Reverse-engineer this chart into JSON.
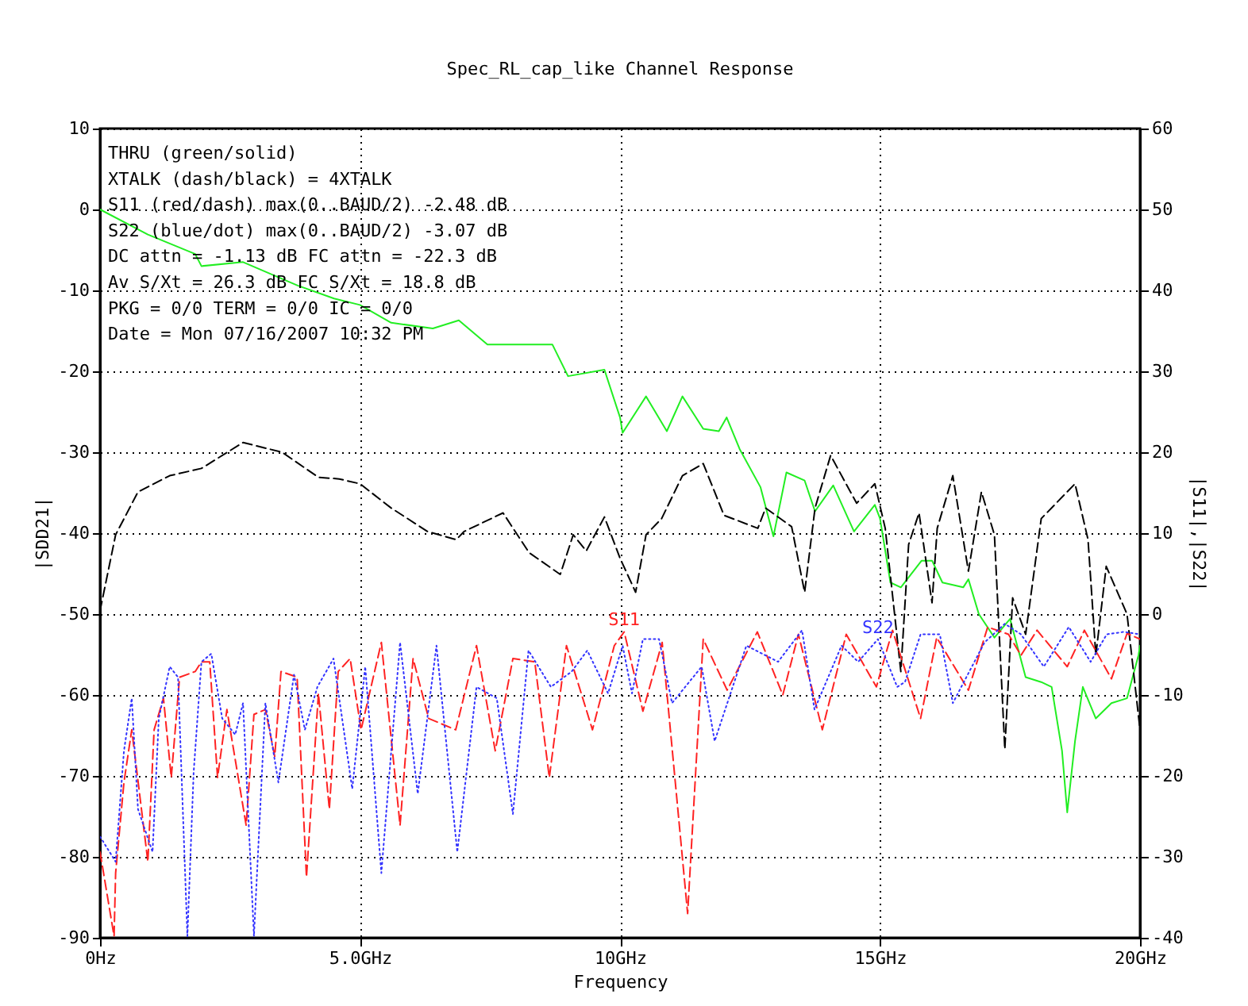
{
  "chart_data": {
    "type": "line",
    "title": "Spec_RL_cap_like Channel Response",
    "xlabel": "Frequency",
    "ylabel": "|SDD21|",
    "y2label": "|S11|,|S22|",
    "xlim": [
      0,
      20
    ],
    "xticks": [
      {
        "value": 0,
        "label": "0Hz"
      },
      {
        "value": 5,
        "label": "5.0GHz"
      },
      {
        "value": 10,
        "label": "10GHz"
      },
      {
        "value": 15,
        "label": "15GHz"
      },
      {
        "value": 20,
        "label": "20GHz"
      }
    ],
    "ylim": [
      -90,
      10
    ],
    "yticks": [
      -90,
      -80,
      -70,
      -60,
      -50,
      -40,
      -30,
      -20,
      -10,
      0,
      10
    ],
    "y2lim": [
      -40,
      60
    ],
    "y2ticks": [
      -40,
      -30,
      -20,
      -10,
      0,
      10,
      20,
      30,
      40,
      50,
      60
    ],
    "grid": true,
    "marker": "none",
    "annotations": [
      "THRU (green/solid)",
      "XTALK (dash/black) = 4XTALK",
      "S11 (red/dash) max(0..BAUD/2) -2.48 dB",
      "S22 (blue/dot) max(0..BAUD/2) -3.07 dB",
      "DC attn = -1.13 dB  FC attn = -22.3 dB",
      "Av S/Xt = 26.3 dB  FC S/Xt = 18.8 dB",
      "PKG = 0/0  TERM = 0/0  IC = 0/0",
      "Date = Mon 07/16/2007  10:32 PM"
    ],
    "series": [
      {
        "color": "#22ee22",
        "line_style": "solid",
        "x": [
          0,
          0.92,
          1.83,
          1.95,
          2.75,
          3.8,
          4.5,
          5,
          5.6,
          6.4,
          6.9,
          7.45,
          8.15,
          8.7,
          9.0,
          9.7,
          10.0,
          10.05,
          10.5,
          10.9,
          11.2,
          11.6,
          11.9,
          12.05,
          12.3,
          12.7,
          12.95,
          13.2,
          13.55,
          13.75,
          14.1,
          14.5,
          14.9,
          15.0,
          15.2,
          15.4,
          15.8,
          16.0,
          16.2,
          16.6,
          16.7,
          16.9,
          17.2,
          17.5,
          17.8,
          18.1,
          18.3,
          18.5,
          18.6,
          18.75,
          18.9,
          19.15,
          19.45,
          19.75,
          19.97,
          20
        ],
        "values": [
          0,
          -3.1,
          -5.5,
          -7,
          -6.5,
          -9.4,
          -11,
          -11.8,
          -14,
          -14.7,
          -13.7,
          -16.7,
          -16.7,
          -16.7,
          -20.6,
          -19.8,
          -25.7,
          -27.6,
          -23.1,
          -27.4,
          -23.1,
          -27.1,
          -27.4,
          -25.7,
          -29.6,
          -34.3,
          -40.4,
          -32.5,
          -33.5,
          -37.3,
          -34.1,
          -39.8,
          -36.5,
          -38.2,
          -46.1,
          -46.7,
          -43.4,
          -43.4,
          -46.1,
          -46.7,
          -45.7,
          -50,
          -52.9,
          -50.6,
          -57.8,
          -58.4,
          -59,
          -66.9,
          -74.5,
          -65.7,
          -59,
          -62.9,
          -61,
          -60.4,
          -55.1,
          -53.9
        ]
      },
      {
        "color": "#000000",
        "line_style": "dashed",
        "x": [
          0,
          0.3,
          0.73,
          1.34,
          1.95,
          2.75,
          3.5,
          4.2,
          4.6,
          5.0,
          5.6,
          6.3,
          6.85,
          7.0,
          7.75,
          8.25,
          8.85,
          9.1,
          9.35,
          9.7,
          10.0,
          10.3,
          10.5,
          10.8,
          11.2,
          11.6,
          12.0,
          12.65,
          12.8,
          13.3,
          13.55,
          13.75,
          14.05,
          14.55,
          14.9,
          15.1,
          15.4,
          15.55,
          15.75,
          16.0,
          16.1,
          16.4,
          16.7,
          16.95,
          17.2,
          17.4,
          17.55,
          17.8,
          18.1,
          18.75,
          19.0,
          19.15,
          19.35,
          19.75,
          20
        ],
        "values": [
          -49.6,
          -40.2,
          -34.9,
          -32.9,
          -32,
          -28.8,
          -30,
          -33.1,
          -33.3,
          -33.9,
          -36.9,
          -39.8,
          -40.8,
          -39.8,
          -37.5,
          -42.4,
          -45.1,
          -40.2,
          -42.2,
          -38,
          -43.1,
          -47.3,
          -40.2,
          -38.2,
          -32.9,
          -31.4,
          -37.8,
          -39.4,
          -36.9,
          -39.2,
          -47.3,
          -36.9,
          -30.4,
          -36.3,
          -33.9,
          -39.4,
          -57.1,
          -41.4,
          -37.5,
          -48.6,
          -39.4,
          -32.9,
          -44.7,
          -34.9,
          -40.2,
          -66.7,
          -48,
          -52.5,
          -38.2,
          -33.9,
          -40.8,
          -55.1,
          -44.1,
          -50,
          -64.3
        ]
      },
      {
        "name": "S11",
        "color": "#ff2222",
        "line_style": "dashed",
        "axis": "y2",
        "x": [
          0,
          0.27,
          0.3,
          0.46,
          0.61,
          0.92,
          1.04,
          1.22,
          1.37,
          1.53,
          1.83,
          1.95,
          2.11,
          2.26,
          2.44,
          2.81,
          2.96,
          3.18,
          3.36,
          3.48,
          3.79,
          3.97,
          4.2,
          4.41,
          4.58,
          4.81,
          5.02,
          5.41,
          5.77,
          6.02,
          6.32,
          6.84,
          7.24,
          7.6,
          7.94,
          8.36,
          8.64,
          8.97,
          9.47,
          9.89,
          10.08,
          10.44,
          10.81,
          11.3,
          11.6,
          12.06,
          12.64,
          13.13,
          13.43,
          13.89,
          14.35,
          14.93,
          15.24,
          15.78,
          16.09,
          16.7,
          17.07,
          17.47,
          17.71,
          18.02,
          18.6,
          18.93,
          19.45,
          19.75,
          20
        ],
        "values": [
          -29.4,
          -39.8,
          -32,
          -20.8,
          -14.3,
          -30.6,
          -14.3,
          -10.4,
          -20.2,
          -7.8,
          -7.1,
          -5.9,
          -5.9,
          -20.2,
          -11.8,
          -26.1,
          -12.4,
          -11.8,
          -17.6,
          -7.1,
          -7.8,
          -32.5,
          -9.8,
          -24.1,
          -7.1,
          -5.5,
          -14.3,
          -3.5,
          -26.1,
          -5.5,
          -12.9,
          -14.3,
          -3.9,
          -16.9,
          -5.5,
          -5.9,
          -20.2,
          -3.9,
          -14.3,
          -3.9,
          -2.2,
          -12,
          -3.5,
          -37,
          -3.1,
          -9.4,
          -2.2,
          -10,
          -2.5,
          -14.3,
          -2.5,
          -9,
          -2,
          -12.9,
          -2.9,
          -9.4,
          -1.6,
          -2.5,
          -5.1,
          -2,
          -6.5,
          -2,
          -8,
          -2.4,
          -3.1
        ]
      },
      {
        "name": "S22",
        "color": "#3333ff",
        "line_style": "dotted",
        "axis": "y2",
        "x": [
          0,
          0.3,
          0.46,
          0.61,
          0.73,
          1.01,
          1.13,
          1.34,
          1.5,
          1.68,
          1.8,
          1.95,
          2.14,
          2.35,
          2.6,
          2.75,
          2.96,
          3.18,
          3.43,
          3.73,
          3.94,
          4.18,
          4.49,
          4.85,
          5.1,
          5.41,
          5.77,
          6.11,
          6.47,
          6.87,
          7.24,
          7.63,
          7.94,
          8.24,
          8.67,
          9.07,
          9.37,
          9.77,
          10.05,
          10.23,
          10.44,
          10.75,
          11.0,
          11.57,
          11.82,
          12.43,
          13.04,
          13.5,
          13.74,
          14.26,
          14.58,
          14.96,
          15.33,
          15.48,
          15.78,
          16.15,
          16.4,
          17.01,
          17.4,
          17.71,
          18.15,
          18.63,
          19.05,
          19.36,
          19.69,
          20
        ],
        "values": [
          -27.5,
          -30.6,
          -16.9,
          -10.4,
          -24.1,
          -29.4,
          -12.9,
          -6.5,
          -7.8,
          -39.8,
          -19.6,
          -5.9,
          -4.9,
          -12.9,
          -14.9,
          -11,
          -39.8,
          -11,
          -20.8,
          -7.5,
          -14.3,
          -9,
          -5.5,
          -21.6,
          -6.5,
          -32,
          -3.5,
          -22.2,
          -3.9,
          -29.4,
          -9,
          -10.4,
          -24.7,
          -4.5,
          -9,
          -7.1,
          -4.5,
          -9.8,
          -3.9,
          -9.8,
          -3.1,
          -3.1,
          -11,
          -6.5,
          -15.7,
          -3.9,
          -5.9,
          -2,
          -11.8,
          -3.9,
          -5.9,
          -3.1,
          -9,
          -8.4,
          -2.5,
          -2.5,
          -11,
          -3.5,
          -1.2,
          -2.5,
          -6.5,
          -1.6,
          -5.9,
          -2.5,
          -2.2,
          -2.5
        ]
      }
    ]
  }
}
